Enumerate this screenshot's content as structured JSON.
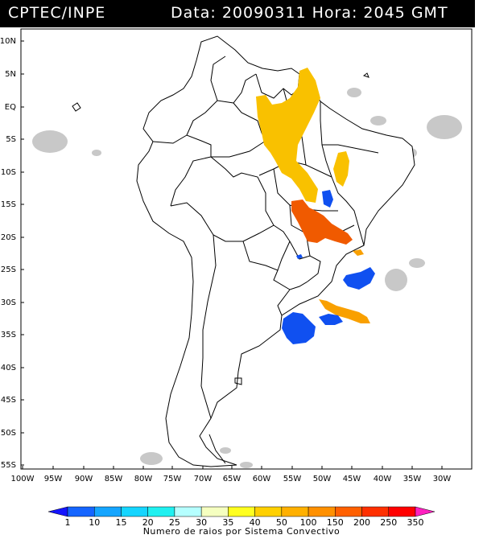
{
  "header": {
    "agency": "CPTEC/INPE",
    "date_label": "Data:",
    "date": "20090311",
    "hour_label": "Hora:",
    "hour": "2045",
    "tz": "GMT"
  },
  "map": {
    "lat_labels": [
      "10N",
      "5N",
      "EQ",
      "5S",
      "10S",
      "15S",
      "20S",
      "25S",
      "30S",
      "35S",
      "40S",
      "45S",
      "50S",
      "55S"
    ],
    "lon_labels": [
      "100W",
      "95W",
      "90W",
      "85W",
      "80W",
      "75W",
      "70W",
      "65W",
      "60W",
      "55W",
      "50W",
      "45W",
      "40W",
      "35W",
      "30W"
    ],
    "colors": {
      "land": "#ffffff",
      "border": "#000000",
      "cloud": "#c8c8c8",
      "yellow_orange": "#f9c100",
      "orange_red": "#f05a00",
      "blue": "#1050f0"
    }
  },
  "colorbar": {
    "title": "Numero de raios por Sistema Convectivo",
    "labels": [
      "1",
      "10",
      "15",
      "20",
      "25",
      "30",
      "35",
      "40",
      "50",
      "100",
      "150",
      "200",
      "250",
      "350"
    ],
    "colors": [
      "#1515ff",
      "#1565ff",
      "#15a5ff",
      "#15d5ff",
      "#20f0f0",
      "#b5ffff",
      "#f5ffc0",
      "#ffff20",
      "#ffd000",
      "#ffb000",
      "#ff9000",
      "#ff6000",
      "#ff3000",
      "#ff0000",
      "#ff20c0"
    ]
  }
}
